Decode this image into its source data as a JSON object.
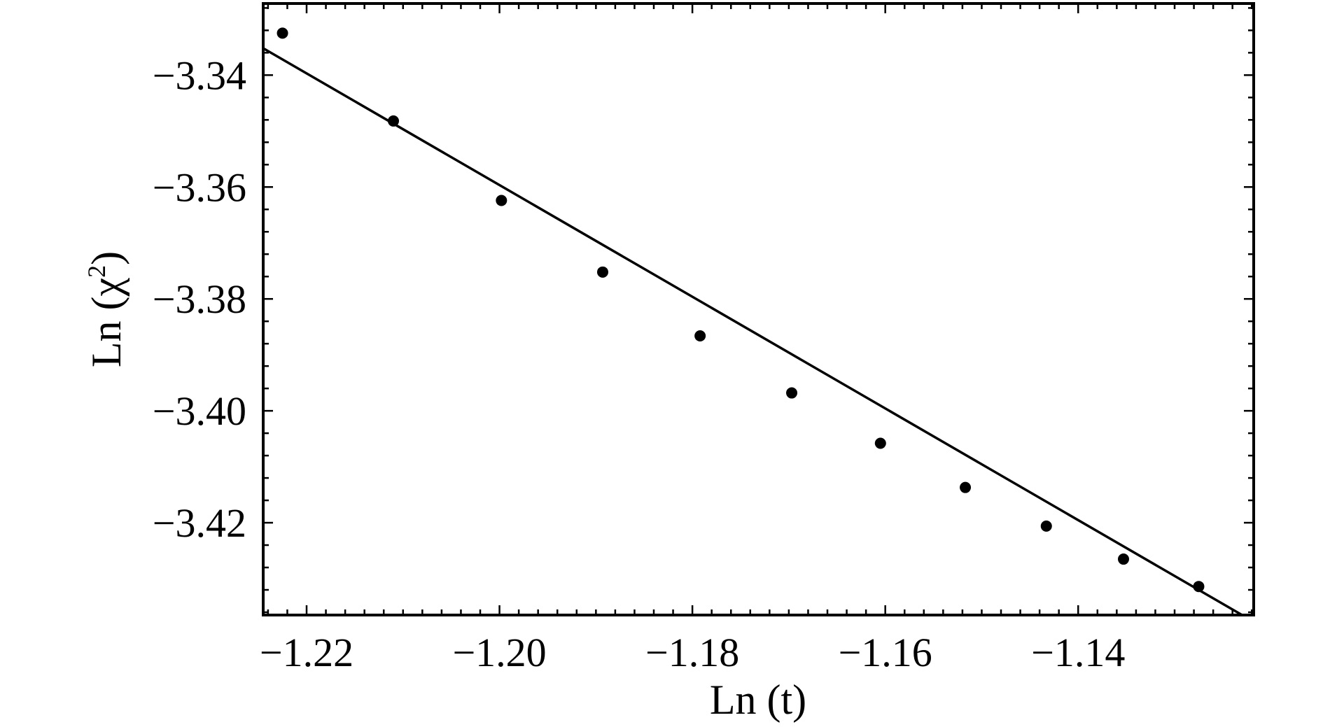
{
  "chart_data": {
    "type": "scatter",
    "xlabel": "Ln (t)",
    "ylabel_main": "Ln (χ",
    "ylabel_sup": "2",
    "ylabel_close": ")",
    "xlim": [
      -1.2245,
      -1.1218
    ],
    "ylim": [
      -3.4365,
      -3.3272
    ],
    "x_ticks": [
      -1.22,
      -1.2,
      -1.18,
      -1.16,
      -1.14
    ],
    "x_tick_labels": [
      "−1.22",
      "−1.20",
      "−1.18",
      "−1.16",
      "−1.14"
    ],
    "x_minor_step": 0.002,
    "y_ticks": [
      -3.34,
      -3.36,
      -3.38,
      -3.4,
      -3.42
    ],
    "y_tick_labels": [
      "−3.34",
      "−3.36",
      "−3.38",
      "−3.40",
      "−3.42"
    ],
    "y_minor_step": 0.004,
    "points": [
      {
        "x": -1.2225,
        "y": -3.3325
      },
      {
        "x": -1.211,
        "y": -3.3482
      },
      {
        "x": -1.1998,
        "y": -3.3624
      },
      {
        "x": -1.1893,
        "y": -3.3752
      },
      {
        "x": -1.1792,
        "y": -3.3866
      },
      {
        "x": -1.1697,
        "y": -3.3968
      },
      {
        "x": -1.1605,
        "y": -3.4058
      },
      {
        "x": -1.1517,
        "y": -3.4137
      },
      {
        "x": -1.1433,
        "y": -3.4206
      },
      {
        "x": -1.1353,
        "y": -3.4265
      },
      {
        "x": -1.1275,
        "y": -3.4314
      }
    ],
    "fit_line": {
      "x": [
        -1.2245,
        -1.123
      ],
      "y": [
        -3.3352,
        -3.4365
      ]
    },
    "grid": false,
    "legend": "none"
  }
}
